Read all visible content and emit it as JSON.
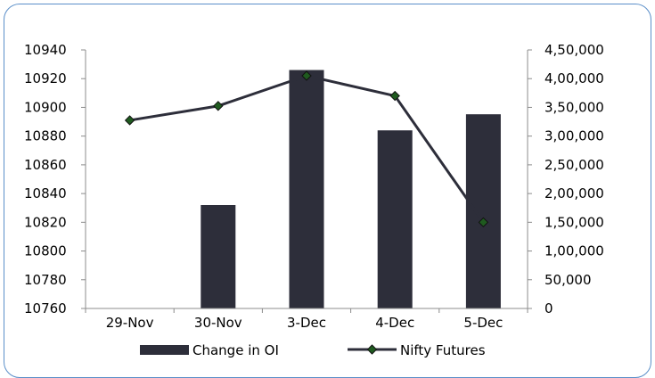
{
  "chart_data": {
    "type": "bar+line",
    "categories": [
      "29-Nov",
      "30-Nov",
      "3-Dec",
      "4-Dec",
      "5-Dec"
    ],
    "series": [
      {
        "name": "Change in OI",
        "type": "bar",
        "axis": "right",
        "values": [
          0,
          180000,
          415000,
          310000,
          338000
        ],
        "color": "#2d2e3a"
      },
      {
        "name": "Nifty Futures",
        "type": "line",
        "axis": "left",
        "values": [
          10891,
          10901,
          10922,
          10908,
          10820
        ],
        "color": "#2d2e3a",
        "marker_color": "#1f5a1f"
      }
    ],
    "left_axis": {
      "ticks": [
        "10940",
        "10920",
        "10900",
        "10880",
        "10860",
        "10840",
        "10820",
        "10800",
        "10780",
        "10760"
      ],
      "ylim": [
        10760,
        10940
      ]
    },
    "right_axis": {
      "ticks": [
        "4,50,000",
        "4,00,000",
        "3,50,000",
        "3,00,000",
        "2,50,000",
        "2,00,000",
        "1,50,000",
        "1,00,000",
        "50,000",
        "0"
      ],
      "ylim": [
        0,
        450000
      ]
    },
    "legend_position": "bottom",
    "grid": false
  }
}
